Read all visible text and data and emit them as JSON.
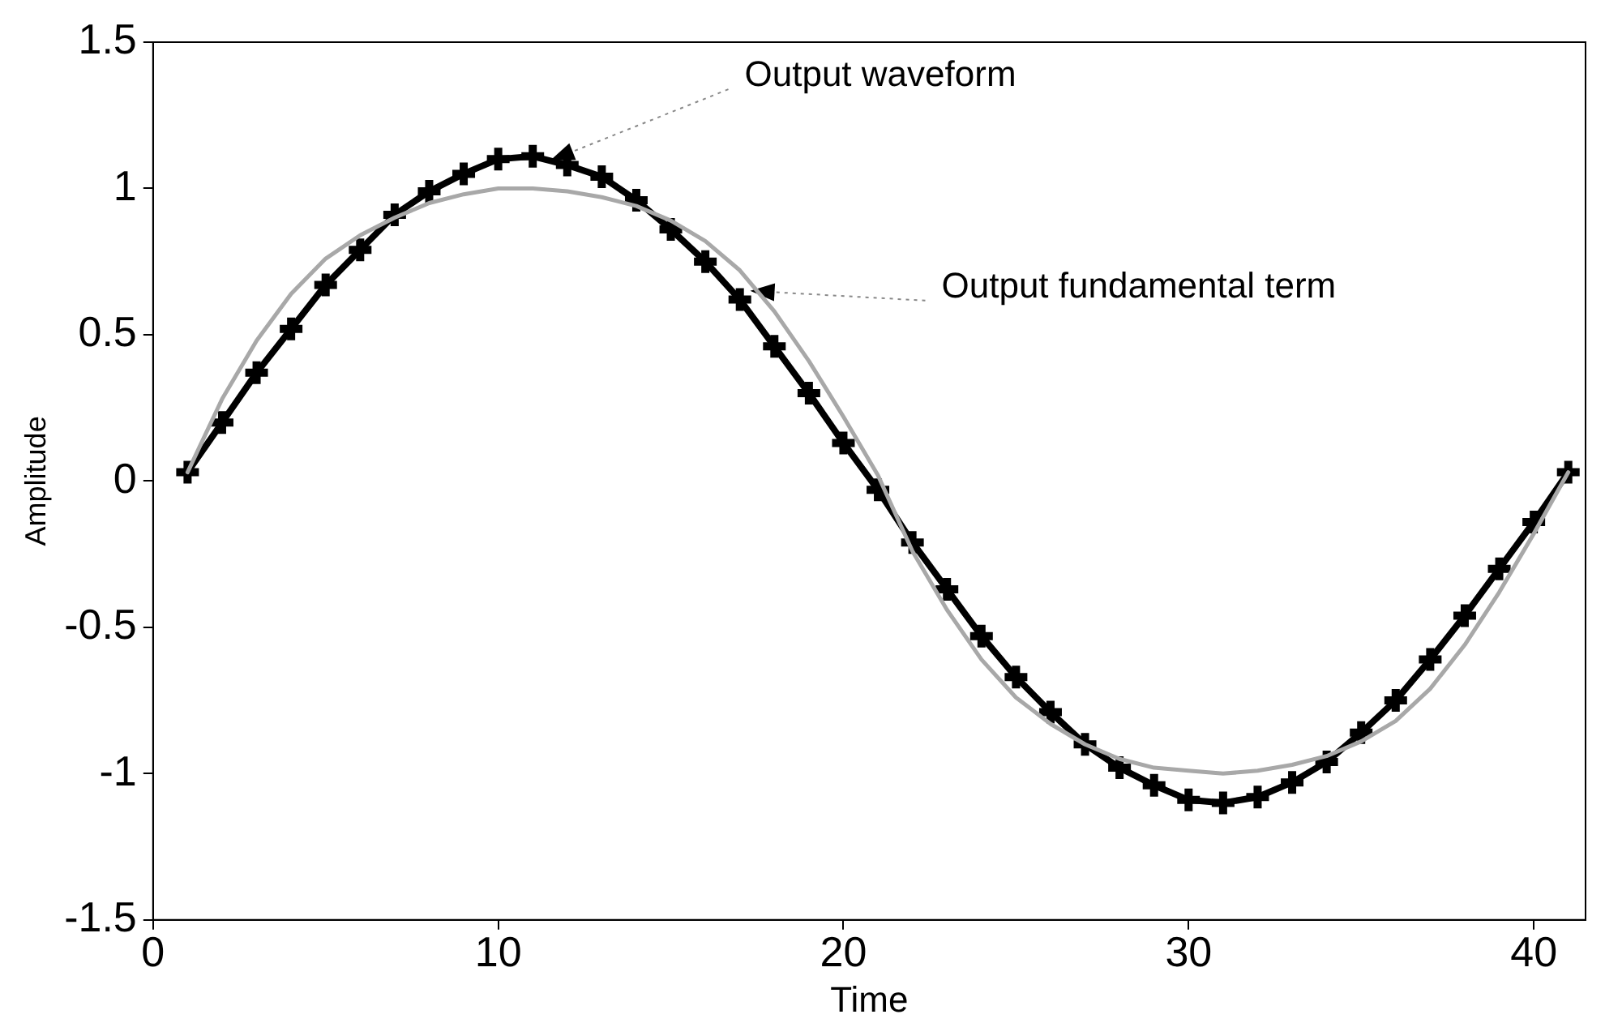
{
  "chart_data": {
    "type": "line",
    "xlabel": "Time",
    "ylabel": "Amplitude",
    "xlim": [
      0,
      41.5
    ],
    "xticks": [
      0,
      10,
      20,
      30,
      40
    ],
    "ylim": [
      -1.5,
      1.5
    ],
    "yticks": [
      -1.5,
      -1,
      -0.5,
      0,
      0.5,
      1,
      1.5
    ],
    "grid": false,
    "legend": false,
    "line_style": "solid",
    "series": [
      {
        "color": "#a8a8a8",
        "marker": "none",
        "x": [
          1,
          2,
          3,
          4,
          5,
          6,
          7,
          8,
          9,
          10,
          11,
          12,
          13,
          14,
          15,
          16,
          17,
          18,
          19,
          20,
          21,
          22,
          23,
          24,
          25,
          26,
          27,
          28,
          29,
          30,
          31,
          32,
          33,
          34,
          35,
          36,
          37,
          38,
          39,
          40,
          41
        ],
        "values": [
          0.03,
          0.28,
          0.48,
          0.64,
          0.76,
          0.84,
          0.9,
          0.95,
          0.98,
          1.0,
          1.0,
          0.99,
          0.97,
          0.94,
          0.89,
          0.82,
          0.72,
          0.58,
          0.41,
          0.22,
          0.02,
          -0.24,
          -0.44,
          -0.61,
          -0.74,
          -0.83,
          -0.9,
          -0.95,
          -0.98,
          -0.99,
          -1.0,
          -0.99,
          -0.97,
          -0.94,
          -0.89,
          -0.82,
          -0.71,
          -0.56,
          -0.38,
          -0.18,
          0.03
        ]
      },
      {
        "color": "#000000",
        "marker": "cross",
        "x": [
          1,
          2,
          3,
          4,
          5,
          6,
          7,
          8,
          9,
          10,
          11,
          12,
          13,
          14,
          15,
          16,
          17,
          18,
          19,
          20,
          21,
          22,
          23,
          24,
          25,
          26,
          27,
          28,
          29,
          30,
          31,
          32,
          33,
          34,
          35,
          36,
          37,
          38,
          39,
          40,
          41
        ],
        "values": [
          0.03,
          0.2,
          0.37,
          0.52,
          0.67,
          0.79,
          0.91,
          0.99,
          1.05,
          1.1,
          1.11,
          1.08,
          1.04,
          0.96,
          0.86,
          0.75,
          0.62,
          0.46,
          0.3,
          0.13,
          -0.03,
          -0.21,
          -0.37,
          -0.53,
          -0.67,
          -0.79,
          -0.9,
          -0.98,
          -1.04,
          -1.09,
          -1.1,
          -1.08,
          -1.03,
          -0.96,
          -0.86,
          -0.75,
          -0.61,
          -0.46,
          -0.3,
          -0.14,
          0.03
        ]
      }
    ],
    "annotations": [
      {
        "text": "Output waveform",
        "x": 11.5,
        "y": 1.095
      },
      {
        "text": "Output fundamental term",
        "x": 17.3,
        "y": 0.65
      }
    ]
  }
}
